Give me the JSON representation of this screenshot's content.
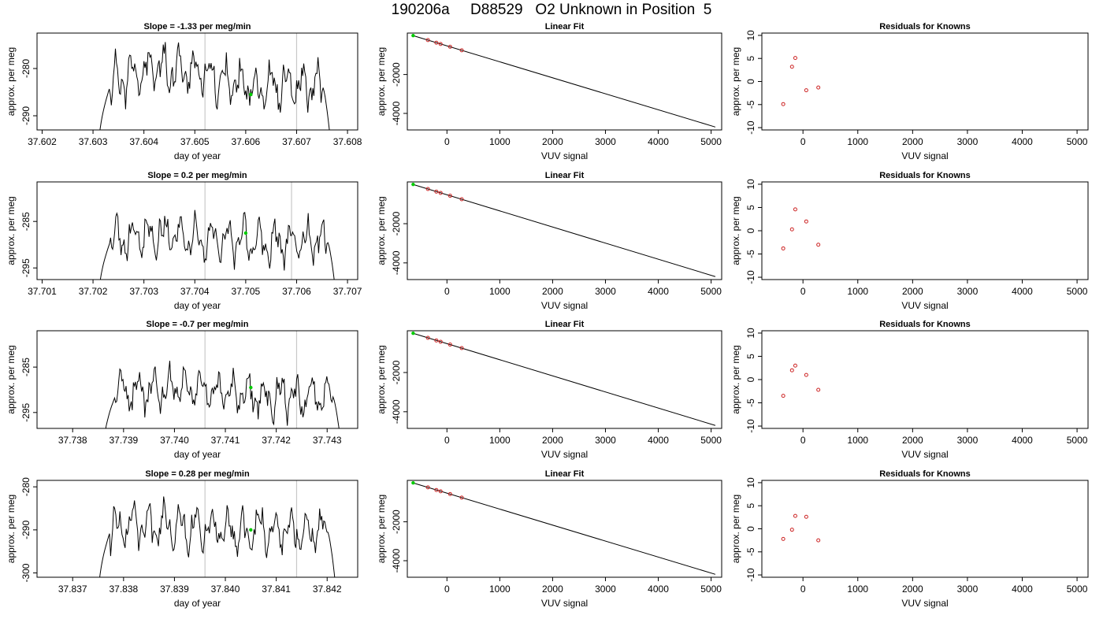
{
  "page_title": "190206a     D88529   O2 Unknown in Position  5",
  "colors": {
    "trace": "#000000",
    "marker": "#00cc00",
    "residual": "#cc2222",
    "fit_point": "#cc2222",
    "ref_line": "#c8c8c8",
    "frame": "#000000"
  },
  "chart_data": [
    {
      "id": "time-1",
      "type": "line",
      "title": "Slope =  -1.33  per meg/min",
      "xlabel": "day of year",
      "ylabel": "approx. per meg",
      "xlim": [
        37.6019,
        37.6082
      ],
      "ylim": [
        -293,
        -272.5
      ],
      "xticks": [
        37.602,
        37.603,
        37.604,
        37.605,
        37.606,
        37.607,
        37.608
      ],
      "xtick_labels": [
        "37.602",
        "37.603",
        "37.604",
        "37.605",
        "37.606",
        "37.607",
        "37.608"
      ],
      "yticks": [
        -290,
        -280
      ],
      "ytick_labels": [
        "-290",
        "-280"
      ],
      "ref_lines_x": [
        37.6052,
        37.607
      ],
      "marker": {
        "x": 37.6061,
        "y": -285.5
      },
      "trace": {
        "x_start": 37.6031,
        "x_end": 37.6077,
        "base": -284,
        "amp": 3.2,
        "hump": 4,
        "seed": 11
      }
    },
    {
      "id": "fit-1",
      "type": "line",
      "title": "Linear Fit",
      "xlabel": "VUV signal",
      "ylabel": "approx. per meg",
      "xlim": [
        -750,
        5200
      ],
      "ylim": [
        -4850,
        130
      ],
      "xticks": [
        0,
        1000,
        2000,
        3000,
        4000,
        5000
      ],
      "xtick_labels": [
        "0",
        "1000",
        "2000",
        "3000",
        "4000",
        "5000"
      ],
      "yticks": [
        -4000,
        -2000
      ],
      "ytick_labels": [
        "-4000",
        "-2000"
      ],
      "line": [
        [
          -640,
          0
        ],
        [
          5080,
          -4700
        ]
      ],
      "points": [
        [
          -360,
          -230
        ],
        [
          -200,
          -365
        ],
        [
          -120,
          -430
        ],
        [
          60,
          -575
        ],
        [
          280,
          -755
        ]
      ],
      "marker": {
        "x": -640,
        "y": 0
      }
    },
    {
      "id": "resid-1",
      "type": "scatter",
      "title": "Residuals for Knowns",
      "xlabel": "VUV signal",
      "ylabel": "approx. per meg",
      "xlim": [
        -750,
        5200
      ],
      "ylim": [
        -10.5,
        10.5
      ],
      "xticks": [
        0,
        1000,
        2000,
        3000,
        4000,
        5000
      ],
      "xtick_labels": [
        "0",
        "1000",
        "2000",
        "3000",
        "4000",
        "5000"
      ],
      "yticks": [
        -10,
        -5,
        0,
        5,
        10
      ],
      "ytick_labels": [
        "-10",
        "-5",
        "0",
        "5",
        "10"
      ],
      "points": [
        [
          -360,
          -4.9
        ],
        [
          -200,
          3.2
        ],
        [
          -140,
          5.1
        ],
        [
          60,
          -1.9
        ],
        [
          280,
          -1.3
        ]
      ]
    },
    {
      "id": "time-2",
      "type": "line",
      "title": "Slope =  0.2  per meg/min",
      "xlabel": "day of year",
      "ylabel": "approx. per meg",
      "xlim": [
        37.7009,
        37.7072
      ],
      "ylim": [
        -297.5,
        -276.5
      ],
      "xticks": [
        37.701,
        37.702,
        37.703,
        37.704,
        37.705,
        37.706,
        37.707
      ],
      "xtick_labels": [
        "37.701",
        "37.702",
        "37.703",
        "37.704",
        "37.705",
        "37.706",
        "37.707"
      ],
      "yticks": [
        -295,
        -285
      ],
      "ytick_labels": [
        "-295",
        "-285"
      ],
      "ref_lines_x": [
        37.7042,
        37.7059
      ],
      "marker": {
        "x": 37.705,
        "y": -287.5
      },
      "trace": {
        "x_start": 37.7021,
        "x_end": 37.7068,
        "base": -289.5,
        "amp": 3.2,
        "hump": 1.5,
        "seed": 23
      }
    },
    {
      "id": "fit-2",
      "type": "line",
      "title": "Linear Fit",
      "xlabel": "VUV signal",
      "ylabel": "approx. per meg",
      "xlim": [
        -750,
        5200
      ],
      "ylim": [
        -4850,
        130
      ],
      "xticks": [
        0,
        1000,
        2000,
        3000,
        4000,
        5000
      ],
      "xtick_labels": [
        "0",
        "1000",
        "2000",
        "3000",
        "4000",
        "5000"
      ],
      "yticks": [
        -4000,
        -2000
      ],
      "ytick_labels": [
        "-4000",
        "-2000"
      ],
      "line": [
        [
          -640,
          0
        ],
        [
          5080,
          -4700
        ]
      ],
      "points": [
        [
          -360,
          -230
        ],
        [
          -200,
          -365
        ],
        [
          -120,
          -430
        ],
        [
          60,
          -575
        ],
        [
          280,
          -755
        ]
      ],
      "marker": {
        "x": -640,
        "y": 0
      }
    },
    {
      "id": "resid-2",
      "type": "scatter",
      "title": "Residuals for Knowns",
      "xlabel": "VUV signal",
      "ylabel": "approx. per meg",
      "xlim": [
        -750,
        5200
      ],
      "ylim": [
        -10.5,
        10.5
      ],
      "xticks": [
        0,
        1000,
        2000,
        3000,
        4000,
        5000
      ],
      "xtick_labels": [
        "0",
        "1000",
        "2000",
        "3000",
        "4000",
        "5000"
      ],
      "yticks": [
        -10,
        -5,
        0,
        5,
        10
      ],
      "ytick_labels": [
        "-10",
        "-5",
        "0",
        "5",
        "10"
      ],
      "points": [
        [
          -360,
          -3.8
        ],
        [
          -200,
          0.3
        ],
        [
          -140,
          4.6
        ],
        [
          60,
          2.0
        ],
        [
          280,
          -3.0
        ]
      ]
    },
    {
      "id": "time-3",
      "type": "line",
      "title": "Slope =  -0.7  per meg/min",
      "xlabel": "day of year",
      "ylabel": "approx. per meg",
      "xlim": [
        37.7373,
        37.7436
      ],
      "ylim": [
        -298.5,
        -277
      ],
      "xticks": [
        37.738,
        37.739,
        37.74,
        37.741,
        37.742,
        37.743
      ],
      "xtick_labels": [
        "37.738",
        "37.739",
        "37.740",
        "37.741",
        "37.742",
        "37.743"
      ],
      "yticks": [
        -295,
        -285
      ],
      "ytick_labels": [
        "-295",
        "-285"
      ],
      "ref_lines_x": [
        37.7406,
        37.7424
      ],
      "marker": {
        "x": 37.7415,
        "y": -289.5
      },
      "trace": {
        "x_start": 37.7386,
        "x_end": 37.7433,
        "base": -291.5,
        "amp": 3.0,
        "hump": 2,
        "seed": 37
      }
    },
    {
      "id": "fit-3",
      "type": "line",
      "title": "Linear Fit",
      "xlabel": "VUV signal",
      "ylabel": "approx. per meg",
      "xlim": [
        -750,
        5200
      ],
      "ylim": [
        -4850,
        130
      ],
      "xticks": [
        0,
        1000,
        2000,
        3000,
        4000,
        5000
      ],
      "xtick_labels": [
        "0",
        "1000",
        "2000",
        "3000",
        "4000",
        "5000"
      ],
      "yticks": [
        -4000,
        -2000
      ],
      "ytick_labels": [
        "-4000",
        "-2000"
      ],
      "line": [
        [
          -640,
          0
        ],
        [
          5080,
          -4700
        ]
      ],
      "points": [
        [
          -360,
          -230
        ],
        [
          -200,
          -365
        ],
        [
          -120,
          -430
        ],
        [
          60,
          -575
        ],
        [
          280,
          -755
        ]
      ],
      "marker": {
        "x": -640,
        "y": 0
      }
    },
    {
      "id": "resid-3",
      "type": "scatter",
      "title": "Residuals for Knowns",
      "xlabel": "VUV signal",
      "ylabel": "approx. per meg",
      "xlim": [
        -750,
        5200
      ],
      "ylim": [
        -10.5,
        10.5
      ],
      "xticks": [
        0,
        1000,
        2000,
        3000,
        4000,
        5000
      ],
      "xtick_labels": [
        "0",
        "1000",
        "2000",
        "3000",
        "4000",
        "5000"
      ],
      "yticks": [
        -10,
        -5,
        0,
        5,
        10
      ],
      "ytick_labels": [
        "-10",
        "-5",
        "0",
        "5",
        "10"
      ],
      "points": [
        [
          -360,
          -3.5
        ],
        [
          -200,
          2.0
        ],
        [
          -140,
          3.0
        ],
        [
          60,
          1.0
        ],
        [
          280,
          -2.2
        ]
      ]
    },
    {
      "id": "time-4",
      "type": "line",
      "title": "Slope =  0.28  per meg/min",
      "xlabel": "day of year",
      "ylabel": "approx. per meg",
      "xlim": [
        37.8363,
        37.8426
      ],
      "ylim": [
        -301,
        -278.5
      ],
      "xticks": [
        37.837,
        37.838,
        37.839,
        37.84,
        37.841,
        37.842
      ],
      "xtick_labels": [
        "37.837",
        "37.838",
        "37.839",
        "37.840",
        "37.841",
        "37.842"
      ],
      "yticks": [
        -300,
        -290,
        -280
      ],
      "ytick_labels": [
        "-300",
        "-290",
        "-280"
      ],
      "ref_lines_x": [
        37.8396,
        37.8414
      ],
      "marker": {
        "x": 37.8405,
        "y": -290
      },
      "trace": {
        "x_start": 37.8375,
        "x_end": 37.8422,
        "base": -290.5,
        "amp": 3.4,
        "hump": 1.5,
        "seed": 51
      }
    },
    {
      "id": "fit-4",
      "type": "line",
      "title": "Linear Fit",
      "xlabel": "VUV signal",
      "ylabel": "approx. per meg",
      "xlim": [
        -750,
        5200
      ],
      "ylim": [
        -4850,
        130
      ],
      "xticks": [
        0,
        1000,
        2000,
        3000,
        4000,
        5000
      ],
      "xtick_labels": [
        "0",
        "1000",
        "2000",
        "3000",
        "4000",
        "5000"
      ],
      "yticks": [
        -4000,
        -2000
      ],
      "ytick_labels": [
        "-4000",
        "-2000"
      ],
      "line": [
        [
          -640,
          0
        ],
        [
          5080,
          -4700
        ]
      ],
      "points": [
        [
          -360,
          -230
        ],
        [
          -200,
          -365
        ],
        [
          -120,
          -430
        ],
        [
          60,
          -575
        ],
        [
          280,
          -755
        ]
      ],
      "marker": {
        "x": -640,
        "y": 0
      }
    },
    {
      "id": "resid-4",
      "type": "scatter",
      "title": "Residuals for Knowns",
      "xlabel": "VUV signal",
      "ylabel": "approx. per meg",
      "xlim": [
        -750,
        5200
      ],
      "ylim": [
        -10.5,
        10.5
      ],
      "xticks": [
        0,
        1000,
        2000,
        3000,
        4000,
        5000
      ],
      "xtick_labels": [
        "0",
        "1000",
        "2000",
        "3000",
        "4000",
        "5000"
      ],
      "yticks": [
        -10,
        -5,
        0,
        5,
        10
      ],
      "ytick_labels": [
        "-10",
        "-5",
        "0",
        "5",
        "10"
      ],
      "points": [
        [
          -360,
          -2.2
        ],
        [
          -200,
          -0.2
        ],
        [
          -140,
          2.8
        ],
        [
          60,
          2.6
        ],
        [
          280,
          -2.5
        ]
      ]
    }
  ]
}
